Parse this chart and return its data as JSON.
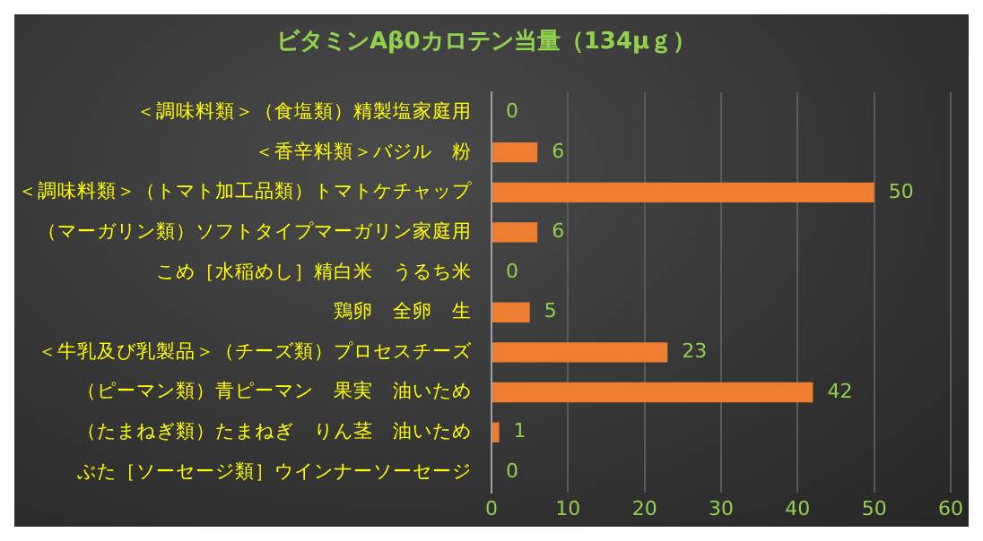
{
  "chart_data": {
    "type": "bar",
    "orientation": "horizontal",
    "title": "ビタミンAβ0カロテン当量（134μｇ）",
    "categories": [
      "＜調味料類＞（食塩類）精製塩家庭用",
      "＜香辛料類＞バジル　粉",
      "＜調味料類＞（トマト加工品類）トマトケチャップ",
      "（マーガリン類）ソフトタイプマーガリン家庭用",
      "こめ［水稲めし］精白米　うるち米",
      "鶏卵　全卵　生",
      "＜牛乳及び乳製品＞（チーズ類）プロセスチーズ",
      "（ピーマン類）青ピーマン　果実　油いため",
      "（たまねぎ類）たまねぎ　りん茎　油いため",
      "ぶた［ソーセージ類］ウインナーソーセージ"
    ],
    "values": [
      0,
      6,
      50,
      6,
      0,
      5,
      23,
      42,
      1,
      0
    ],
    "color": "#ed7d31",
    "xlim": [
      0,
      60
    ],
    "xticks": [
      0,
      10,
      20,
      30,
      40,
      50,
      60
    ],
    "grid": "x",
    "data_labels": true
  }
}
